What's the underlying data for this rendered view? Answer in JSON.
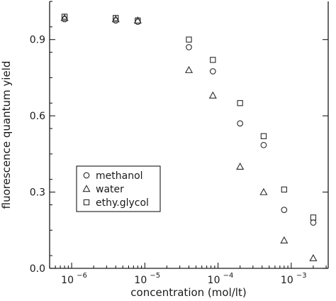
{
  "chart_data": {
    "type": "scatter",
    "title": "",
    "xlabel": "concentration (mol/lt)",
    "ylabel": "fluorescence quantum yield",
    "xscale": "log",
    "xlim": [
      5e-07,
      0.0032
    ],
    "ylim": [
      0.0,
      1.05
    ],
    "grid": false,
    "legend_position": "middle-left",
    "x_ticks": [
      {
        "value": 1e-06,
        "base": "10",
        "exp": "−6"
      },
      {
        "value": 1e-05,
        "base": "10",
        "exp": "−5"
      },
      {
        "value": 0.0001,
        "base": "10",
        "exp": "−4"
      },
      {
        "value": 0.001,
        "base": "10",
        "exp": "−3"
      }
    ],
    "y_ticks": [
      {
        "value": 0.0,
        "label": "0.0"
      },
      {
        "value": 0.3,
        "label": "0.3"
      },
      {
        "value": 0.6,
        "label": "0.6"
      },
      {
        "value": 0.9,
        "label": "0.9"
      }
    ],
    "series": [
      {
        "name": "methanol",
        "marker": "circle",
        "x": [
          8e-07,
          4e-06,
          8e-06,
          4e-05,
          8.5e-05,
          0.0002,
          0.00042,
          0.0008,
          0.002
        ],
        "y": [
          0.98,
          0.975,
          0.97,
          0.87,
          0.775,
          0.57,
          0.485,
          0.23,
          0.18
        ]
      },
      {
        "name": "water",
        "marker": "triangle",
        "x": [
          8e-07,
          4e-06,
          8e-06,
          4e-05,
          8.5e-05,
          0.0002,
          0.00042,
          0.0008,
          0.002
        ],
        "y": [
          0.985,
          0.98,
          0.975,
          0.78,
          0.68,
          0.4,
          0.3,
          0.11,
          0.04
        ]
      },
      {
        "name": "ethy.glycol",
        "marker": "square",
        "x": [
          8e-07,
          4e-06,
          8e-06,
          4e-05,
          8.5e-05,
          0.0002,
          0.00042,
          0.0008,
          0.002
        ],
        "y": [
          0.99,
          0.985,
          0.975,
          0.9,
          0.82,
          0.65,
          0.52,
          0.31,
          0.2
        ]
      }
    ]
  }
}
